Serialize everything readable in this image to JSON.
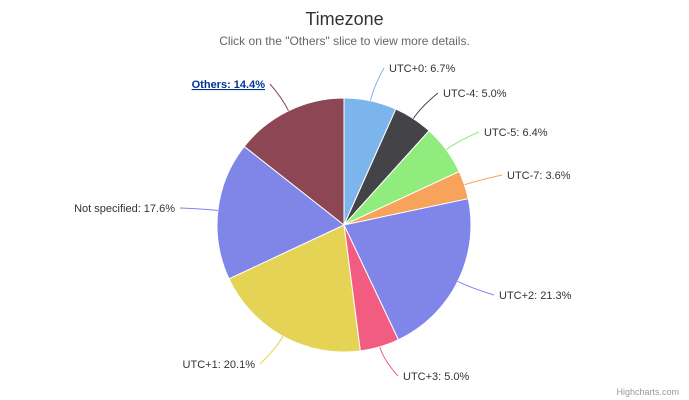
{
  "chart_data": {
    "type": "pie",
    "title": "Timezone",
    "subtitle": "Click on the \"Others\" slice to view more details.",
    "slices": [
      {
        "name": "UTC+0",
        "value": 6.7,
        "label": "UTC+0: 6.7%",
        "color": "#7cb5ec"
      },
      {
        "name": "UTC-4",
        "value": 5.0,
        "label": "UTC-4: 5.0%",
        "color": "#434348"
      },
      {
        "name": "UTC-5",
        "value": 6.4,
        "label": "UTC-5: 6.4%",
        "color": "#90ed7d"
      },
      {
        "name": "UTC-7",
        "value": 3.6,
        "label": "UTC-7: 3.6%",
        "color": "#f7a35c"
      },
      {
        "name": "UTC+2",
        "value": 21.3,
        "label": "UTC+2: 21.3%",
        "color": "#8085e9"
      },
      {
        "name": "UTC+3",
        "value": 5.0,
        "label": "UTC+3: 5.0%",
        "color": "#f15c80"
      },
      {
        "name": "UTC+1",
        "value": 20.1,
        "label": "UTC+1: 20.1%",
        "color": "#e4d354"
      },
      {
        "name": "Not specified",
        "value": 17.6,
        "label": "Not specified: 17.6%",
        "color": "#8085e8"
      },
      {
        "name": "Others",
        "value": 14.4,
        "label": "Others: 14.4%",
        "color": "#8d4653",
        "drilldown": true
      }
    ]
  },
  "credits": "Highcharts.com"
}
